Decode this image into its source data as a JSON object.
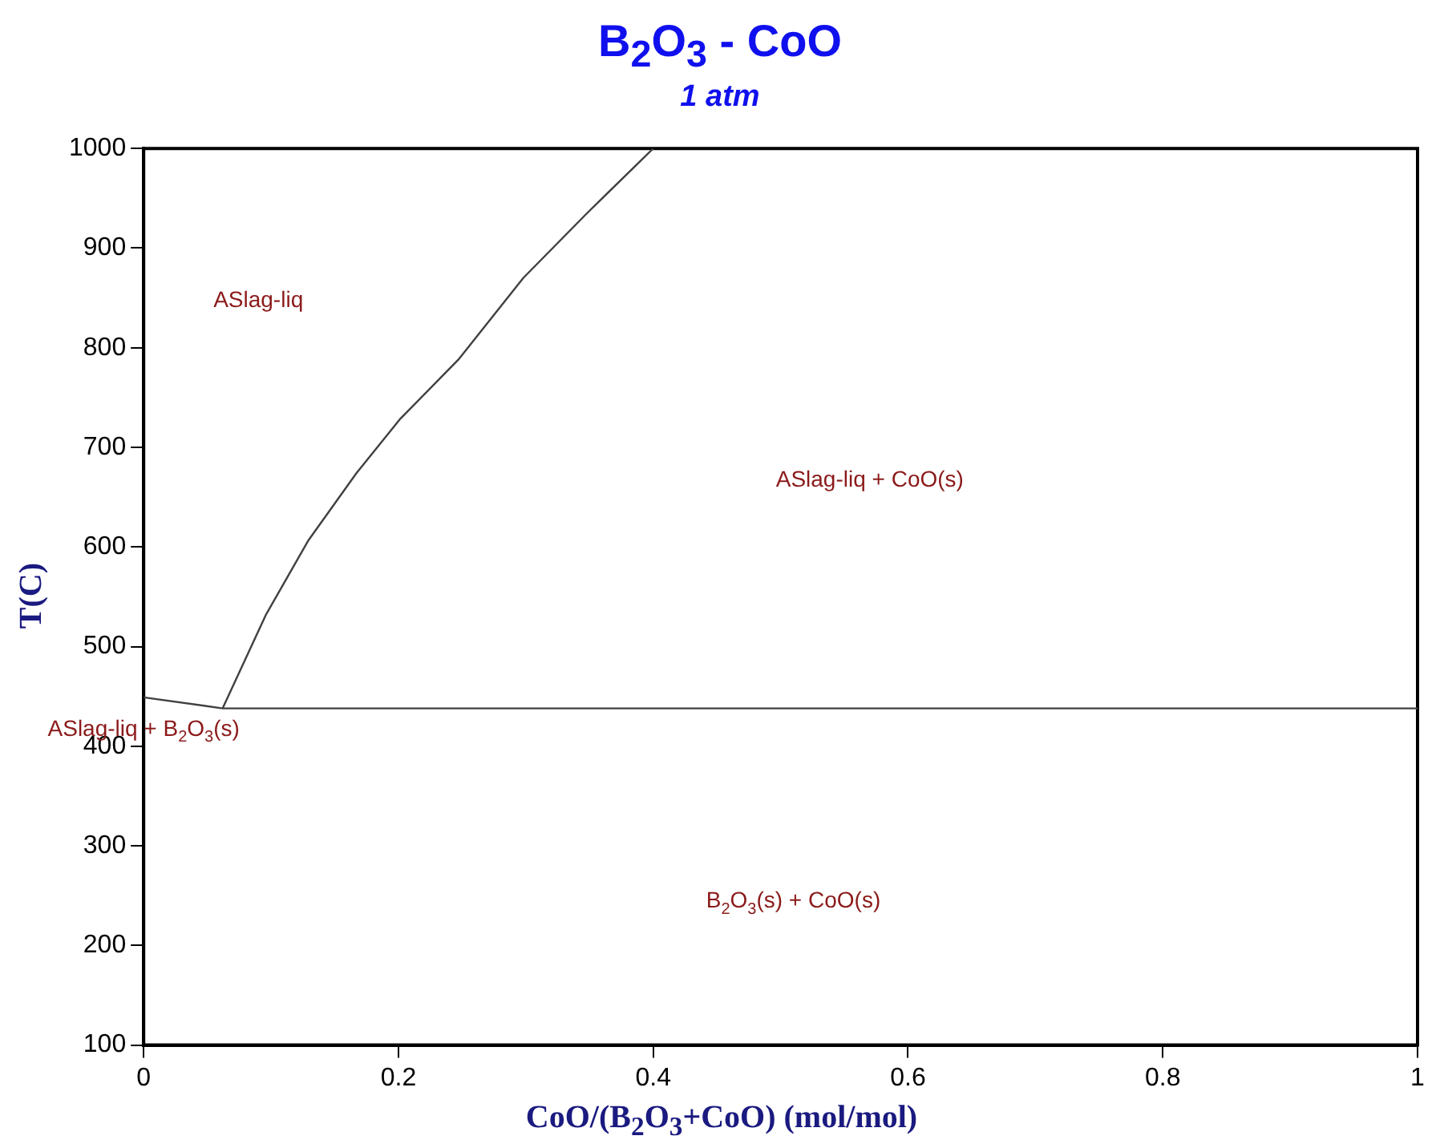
{
  "chart_data": {
    "type": "line",
    "title": "B$_{2}$O$_{3}$ - CoO",
    "subtitle": "1 atm",
    "xlabel": "CoO/(B$_{2}$O$_{3}$+CoO) (mol/mol)",
    "ylabel": "T(C)",
    "xlim": [
      0,
      1
    ],
    "xticks": [
      0,
      0.2,
      0.4,
      0.6,
      0.8,
      1
    ],
    "ylim": [
      100,
      1000
    ],
    "yticks": [
      100,
      200,
      300,
      400,
      500,
      600,
      700,
      800,
      900,
      1000
    ],
    "grid": false,
    "legend": false,
    "marker": "none",
    "line_style": "solid",
    "series": [
      {
        "color": "#404040",
        "x": [
          0.062,
          0.096,
          0.129,
          0.167,
          0.201,
          0.247,
          0.298,
          0.348,
          0.4
        ],
        "values": [
          438,
          532,
          606,
          674,
          728,
          788,
          870,
          935,
          1000
        ]
      },
      {
        "color": "#404040",
        "x": [
          0,
          0.062,
          1
        ],
        "values": [
          449,
          438,
          438
        ]
      }
    ],
    "annotations": [
      "ASlag-liq",
      "ASlag-liq + CoO(s)",
      "ASlag-liq + B$_{2}$O$_{3}$(s)",
      "B$_{2}$O$_{3}$(s) + CoO(s)"
    ]
  }
}
